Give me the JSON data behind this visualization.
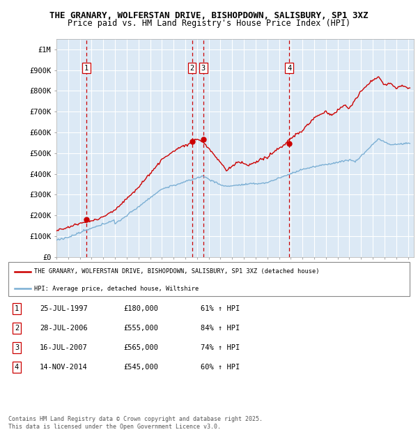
{
  "title_line1": "THE GRANARY, WOLFERSTAN DRIVE, BISHOPDOWN, SALISBURY, SP1 3XZ",
  "title_line2": "Price paid vs. HM Land Registry's House Price Index (HPI)",
  "ylim": [
    0,
    1050000
  ],
  "yticks": [
    0,
    100000,
    200000,
    300000,
    400000,
    500000,
    600000,
    700000,
    800000,
    900000,
    1000000
  ],
  "ytick_labels": [
    "£0",
    "£100K",
    "£200K",
    "£300K",
    "£400K",
    "£500K",
    "£600K",
    "£700K",
    "£800K",
    "£900K",
    "£1M"
  ],
  "xlim_start": 1995.0,
  "xlim_end": 2025.5,
  "xticks": [
    1995,
    1996,
    1997,
    1998,
    1999,
    2000,
    2001,
    2002,
    2003,
    2004,
    2005,
    2006,
    2007,
    2008,
    2009,
    2010,
    2011,
    2012,
    2013,
    2014,
    2015,
    2016,
    2017,
    2018,
    2019,
    2020,
    2021,
    2022,
    2023,
    2024,
    2025
  ],
  "property_color": "#cc0000",
  "hpi_color": "#7bafd4",
  "background_color": "#dce9f5",
  "grid_color": "#ffffff",
  "sale_dates": [
    1997.57,
    2006.57,
    2007.54,
    2014.87
  ],
  "sale_prices": [
    180000,
    555000,
    565000,
    545000
  ],
  "sale_labels": [
    "1",
    "2",
    "3",
    "4"
  ],
  "vline_color": "#cc0000",
  "legend_property": "THE GRANARY, WOLFERSTAN DRIVE, BISHOPDOWN, SALISBURY, SP1 3XZ (detached house)",
  "legend_hpi": "HPI: Average price, detached house, Wiltshire",
  "transactions": [
    {
      "num": "1",
      "date": "25-JUL-1997",
      "price": "£180,000",
      "hpi": "61% ↑ HPI"
    },
    {
      "num": "2",
      "date": "28-JUL-2006",
      "price": "£555,000",
      "hpi": "84% ↑ HPI"
    },
    {
      "num": "3",
      "date": "16-JUL-2007",
      "price": "£565,000",
      "hpi": "74% ↑ HPI"
    },
    {
      "num": "4",
      "date": "14-NOV-2014",
      "price": "£545,000",
      "hpi": "60% ↑ HPI"
    }
  ],
  "footer": "Contains HM Land Registry data © Crown copyright and database right 2025.\nThis data is licensed under the Open Government Licence v3.0."
}
